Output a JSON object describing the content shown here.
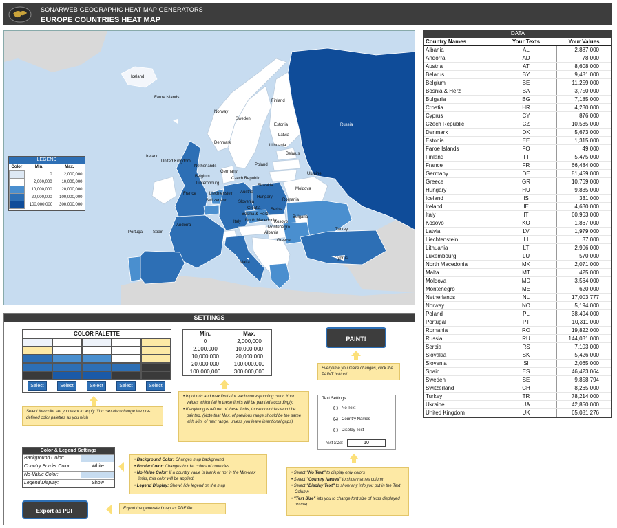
{
  "header": {
    "brand_line": "SONARWEB GEOGRAPHIC HEAT MAP GENERATORS",
    "title": "EUROPE COUNTRIES HEAT MAP"
  },
  "map": {
    "background": "#c7dcf0",
    "labels": {
      "iceland": "Iceland",
      "faroe": "Faroe Islands",
      "norway": "Norway",
      "sweden": "Sweden",
      "finland": "Finland",
      "russia": "Russia",
      "estonia": "Estonia",
      "latvia": "Latvia",
      "lithuania": "Lithuania",
      "belarus": "Belarus",
      "denmark": "Denmark",
      "ireland": "Ireland",
      "uk": "United Kingdom",
      "netherlands": "Netherlands",
      "germany": "Germany",
      "poland": "Poland",
      "belgium": "Belgium",
      "luxembourg": "Luxembourg",
      "czech": "Czech Republic",
      "slovakia": "Slovakia",
      "ukraine": "Ukraine",
      "moldova": "Moldova",
      "france": "France",
      "liechtenstein": "Liechtenstein",
      "austria": "Austria",
      "switzerland": "Switzerland",
      "hungary": "Hungary",
      "romania": "Romania",
      "slovenia": "Slovenia",
      "croatia": "Croatia",
      "serbia": "Serbia",
      "bosnia": "Bosnia & Herz",
      "bulgaria": "Bulgaria",
      "kosovo": "Kosovo",
      "italy": "Italy",
      "north_macedonia": "North Macedonia",
      "montenegro": "Montenegro",
      "albania": "Albania",
      "andorra": "Andorra",
      "portugal": "Portugal",
      "spain": "Spain",
      "greece": "Greece",
      "turkey": "Turkey",
      "malta": "Malta",
      "cyprus": "Cyprus"
    }
  },
  "legend": {
    "title": "LEGEND",
    "columns": [
      "Color",
      "Min.",
      "Max."
    ],
    "rows": [
      {
        "color": "#dde8f4",
        "min": "0",
        "max": "2,000,000"
      },
      {
        "color": "#ffffff",
        "min": "2,000,000",
        "max": "10,000,000"
      },
      {
        "color": "#4a8fcf",
        "min": "10,000,000",
        "max": "20,000,000"
      },
      {
        "color": "#2d6fb5",
        "min": "20,000,000",
        "max": "100,000,000"
      },
      {
        "color": "#0f4c99",
        "min": "100,000,000",
        "max": "300,000,000"
      }
    ]
  },
  "data": {
    "title": "DATA",
    "columns": [
      "Country Names",
      "Your Texts",
      "Your Values"
    ],
    "rows": [
      [
        "Albania",
        "AL",
        "2,887,000"
      ],
      [
        "Andorra",
        "AD",
        "78,000"
      ],
      [
        "Austria",
        "AT",
        "8,608,000"
      ],
      [
        "Belarus",
        "BY",
        "9,481,000"
      ],
      [
        "Belgium",
        "BE",
        "11,259,000"
      ],
      [
        "Bosnia & Herz",
        "BA",
        "3,750,000"
      ],
      [
        "Bulgaria",
        "BG",
        "7,185,000"
      ],
      [
        "Croatia",
        "HR",
        "4,230,000"
      ],
      [
        "Cyprus",
        "CY",
        "876,000"
      ],
      [
        "Czech Republic",
        "CZ",
        "10,535,000"
      ],
      [
        "Denmark",
        "DK",
        "5,673,000"
      ],
      [
        "Estonia",
        "EE",
        "1,315,000"
      ],
      [
        "Faroe Islands",
        "FO",
        "49,000"
      ],
      [
        "Finland",
        "FI",
        "5,475,000"
      ],
      [
        "France",
        "FR",
        "66,484,000"
      ],
      [
        "Germany",
        "DE",
        "81,459,000"
      ],
      [
        "Greece",
        "GR",
        "10,769,000"
      ],
      [
        "Hungary",
        "HU",
        "9,835,000"
      ],
      [
        "Iceland",
        "IS",
        "331,000"
      ],
      [
        "Ireland",
        "IE",
        "4,630,000"
      ],
      [
        "Italy",
        "IT",
        "60,963,000"
      ],
      [
        "Kosovo",
        "KO",
        "1,867,000"
      ],
      [
        "Latvia",
        "LV",
        "1,979,000"
      ],
      [
        "Liechtenstein",
        "LI",
        "37,000"
      ],
      [
        "Lithuania",
        "LT",
        "2,906,000"
      ],
      [
        "Luxembourg",
        "LU",
        "570,000"
      ],
      [
        "North Macedonia",
        "MK",
        "2,071,000"
      ],
      [
        "Malta",
        "MT",
        "425,000"
      ],
      [
        "Moldova",
        "MD",
        "3,564,000"
      ],
      [
        "Montenegro",
        "ME",
        "620,000"
      ],
      [
        "Netherlands",
        "NL",
        "17,003,777"
      ],
      [
        "Norway",
        "NO",
        "5,194,000"
      ],
      [
        "Poland",
        "PL",
        "38,494,000"
      ],
      [
        "Portugal",
        "PT",
        "10,311,000"
      ],
      [
        "Romania",
        "RO",
        "19,822,000"
      ],
      [
        "Russia",
        "RU",
        "144,031,000"
      ],
      [
        "Serbia",
        "RS",
        "7,103,000"
      ],
      [
        "Slovakia",
        "SK",
        "5,426,000"
      ],
      [
        "Slovenia",
        "SI",
        "2,065,000"
      ],
      [
        "Spain",
        "ES",
        "46,423,064"
      ],
      [
        "Sweden",
        "SE",
        "9,858,794"
      ],
      [
        "Switzerland",
        "CH",
        "8,265,000"
      ],
      [
        "Turkey",
        "TR",
        "78,214,000"
      ],
      [
        "Ukraine",
        "UA",
        "42,850,000"
      ],
      [
        "United Kingdom",
        "UK",
        "65,081,276"
      ]
    ]
  },
  "settings": {
    "title": "SETTINGS",
    "palette": {
      "title": "COLOR PALETTE",
      "select_label": "Select",
      "columns": [
        [
          "#eef3fa",
          "#fde9a5",
          "#2d6fb5",
          "#2d6fb5",
          "#3a3a3a"
        ],
        [
          "#ffffff",
          "#ffffff",
          "#4a8fcf",
          "#2d6fb5",
          "#1a5aa8"
        ],
        [
          "#eef3fa",
          "#ffffff",
          "#4a8fcf",
          "#2d6fb5",
          "#1a5aa8"
        ],
        [
          "#ffffff",
          "#ffffff",
          "#ffffff",
          "#2d6fb5",
          "#3a3a3a"
        ],
        [
          "#fde9a5",
          "#fde9a5",
          "#fde9a5",
          "#3a3a3a",
          "#3a3a3a"
        ]
      ]
    },
    "minmax": {
      "columns": [
        "Min.",
        "Max."
      ],
      "rows": [
        [
          "0",
          "2,000,000"
        ],
        [
          "2,000,000",
          "10,000,000"
        ],
        [
          "10,000,000",
          "20,000,000"
        ],
        [
          "20,000,000",
          "100,000,000"
        ],
        [
          "100,000,000",
          "300,000,000"
        ]
      ]
    },
    "paint_label": "PAINT!",
    "paint_note": "Everytime you make changes, click the PAINT button!",
    "palette_note": "Select the color set you want to apply. You can also change the pre-defined color palettes as you wish",
    "limits_note_1": "Input min and max limits for each corresponding color. Your values which fall in these limits will be painted accordingly.",
    "limits_note_2": "If anything is left out of these limits, those countries won't be painted. (Note that Max. of previous range should be the same with Min. of next range, unless you leave intentional gaps)",
    "text_settings": {
      "title": "Text Settings",
      "options": [
        "No Text",
        "Country Names",
        "Display Text"
      ],
      "selected_index": 1,
      "size_label": "Text Size:",
      "size_value": "10"
    },
    "text_note": {
      "items": [
        {
          "b": "\"No Text\"",
          "pre": "Select ",
          "post": " to display only colors"
        },
        {
          "b": "\"Country Names\"",
          "pre": "Select ",
          "post": " to show names column"
        },
        {
          "b": "\"Display Text\"",
          "pre": "Select ",
          "post": " to show any info you put in the Text Column"
        },
        {
          "b": "\"Text Size\"",
          "pre": "",
          "post": " lets you to change font size of texts displayed on map"
        }
      ]
    },
    "color_legend": {
      "title": "Color & Legend Settings",
      "rows": [
        {
          "label": "Background Color:",
          "value": "",
          "swatch": "#c7dcf0"
        },
        {
          "label": "Country Border Color:",
          "value": "White",
          "swatch": ""
        },
        {
          "label": "No-Value Color:",
          "value": "",
          "swatch": "#c7dcf0"
        },
        {
          "label": "Legend Display:",
          "value": "Show",
          "swatch": ""
        }
      ]
    },
    "cls_note": {
      "items": [
        {
          "b": "Background Color:",
          "post": " Changes map background"
        },
        {
          "b": "Border Color:",
          "post": " Changes border colors of countries"
        },
        {
          "b": "No-Value Color:",
          "post": " If a country value is blank or not in the Min-Max limits, this color will be applied."
        },
        {
          "b": "Legend Display:",
          "post": " Show/Hide legend on the map"
        }
      ]
    },
    "pdf_label": "Export as PDF",
    "pdf_note": "Export the generated map as PDF file."
  }
}
